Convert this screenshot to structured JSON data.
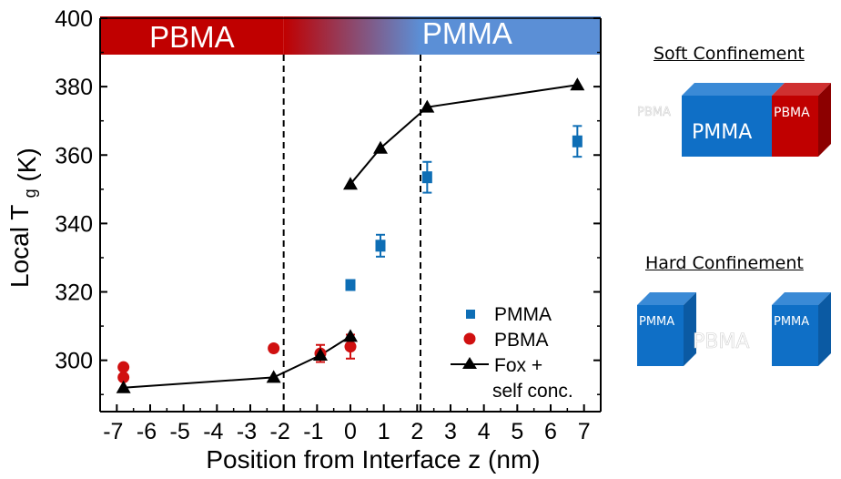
{
  "chart_data": {
    "type": "scatter",
    "title": "",
    "xlabel": "Position from Interface z (nm)",
    "ylabel": "Local T",
    "ylabel_subscript": "g",
    "ylabel_unit": "(K)",
    "xlim": [
      -7.5,
      7.5
    ],
    "ylim": [
      285,
      400
    ],
    "x_ticks": [
      -7,
      -6,
      -5,
      -4,
      -3,
      -2,
      -1,
      0,
      1,
      2,
      3,
      4,
      5,
      6,
      7
    ],
    "y_ticks": [
      300,
      320,
      340,
      360,
      380,
      400
    ],
    "grid": false,
    "interface_lines_x": [
      -2.0,
      2.1
    ],
    "bands": {
      "left_label": "PBMA",
      "right_label": "PMMA",
      "left_color": "#c00000",
      "right_color": "#5b8fd6"
    },
    "legend_position": "bottom-right",
    "series": [
      {
        "name": "PMMA",
        "marker": "square",
        "color": "#0e6eb5",
        "points": [
          {
            "x": 0.0,
            "y": 322,
            "err": 1
          },
          {
            "x": 0.9,
            "y": 333.5,
            "err": 3.2
          },
          {
            "x": 2.3,
            "y": 353.5,
            "err": 4.5
          },
          {
            "x": 6.8,
            "y": 364,
            "err": 4.5
          }
        ]
      },
      {
        "name": "PBMA",
        "marker": "circle",
        "color": "#d01010",
        "points": [
          {
            "x": -6.8,
            "y": 298,
            "err": 0
          },
          {
            "x": -6.8,
            "y": 295,
            "err": 0
          },
          {
            "x": -2.3,
            "y": 303.5,
            "err": 0
          },
          {
            "x": -0.9,
            "y": 302,
            "err": 2.5
          },
          {
            "x": 0.0,
            "y": 304,
            "err": 3.5
          }
        ]
      },
      {
        "name": "Fox + self conc.",
        "legend_lines": [
          "Fox +",
          "self conc."
        ],
        "marker": "triangle",
        "color": "#000000",
        "connected": true,
        "segments": [
          [
            {
              "x": -6.8,
              "y": 292
            },
            {
              "x": -2.3,
              "y": 295
            },
            {
              "x": -0.9,
              "y": 301.5
            },
            {
              "x": 0.0,
              "y": 307
            }
          ],
          [
            {
              "x": 0.0,
              "y": 351.5
            },
            {
              "x": 0.9,
              "y": 362
            },
            {
              "x": 2.3,
              "y": 374
            },
            {
              "x": 6.8,
              "y": 380.5
            }
          ]
        ]
      }
    ]
  },
  "schematics": {
    "soft": {
      "title": "Soft Confinement",
      "ghost_label": "PBMA",
      "main_label": "PMMA",
      "end_label": "PBMA",
      "pmma_color": "#0f6fc6",
      "pbma_color": "#c00000"
    },
    "hard": {
      "title": "Hard Confinement",
      "left_label": "PMMA",
      "ghost_label": "PBMA",
      "right_label": "PMMA",
      "pmma_color": "#0f6fc6"
    }
  }
}
